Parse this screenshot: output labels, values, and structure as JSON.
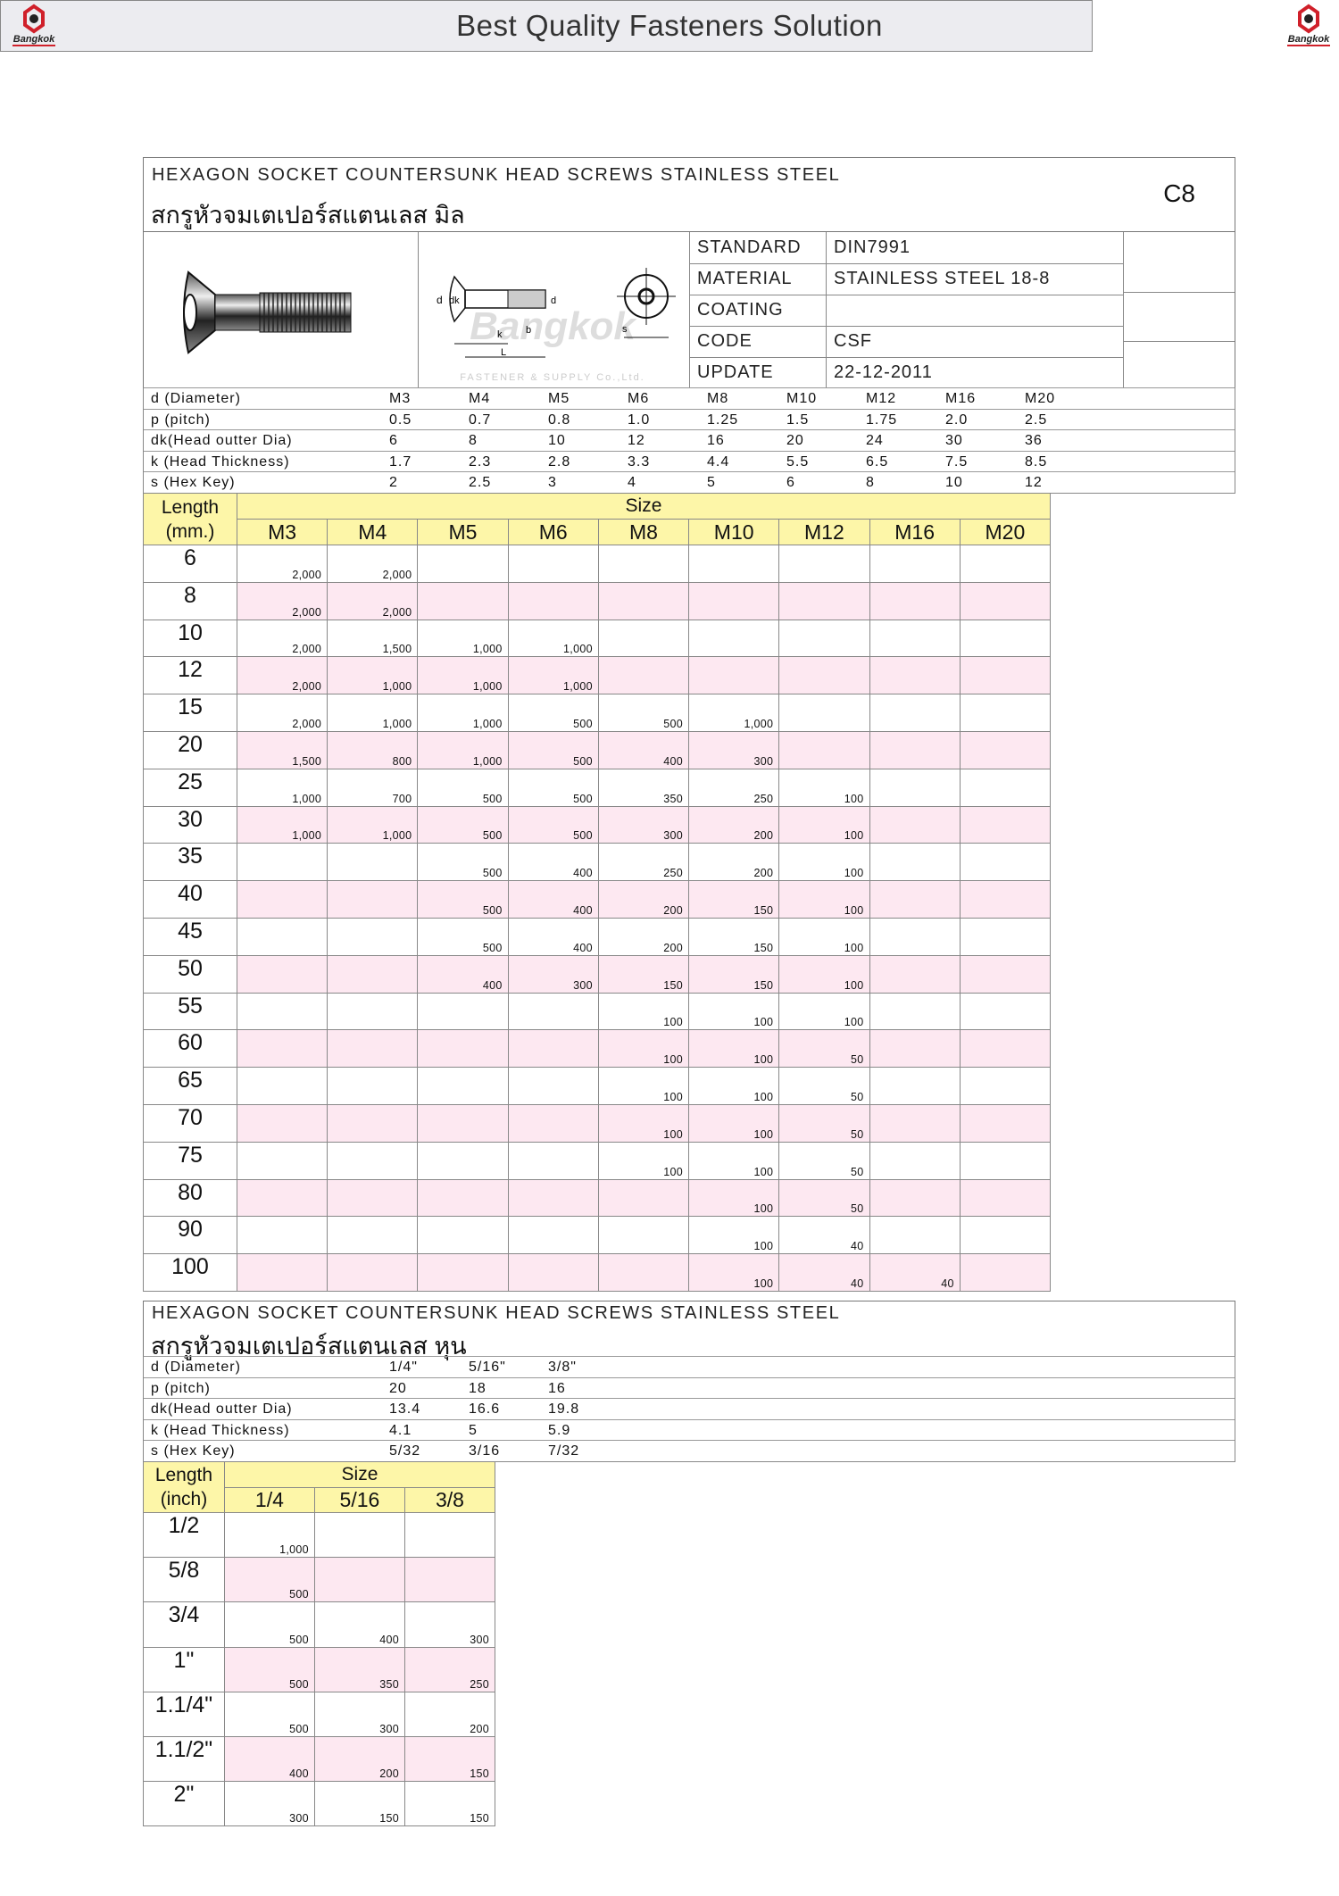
{
  "header": {
    "title": "Best Quality Fasteners  Solution",
    "logo_text": "Bangkok",
    "logo_subtext": "FASTENER & SUPPLY Co.,Ltd."
  },
  "metric": {
    "title_en": "HEXAGON  SOCKET  COUNTERSUNK  HEAD  SCREWS  STAINLESS  STEEL",
    "title_th": "สกรูหัวจมเตเปอร์สแตนเลส มิล",
    "page_code": "C8",
    "diagram_watermark": "Bangkok FASTENER & SUPPLY Co.,Ltd.",
    "diagram_labels": [
      "d",
      "dk",
      "k",
      "b",
      "L",
      "d",
      "s"
    ],
    "info": [
      {
        "label": "STANDARD",
        "value": "DIN7991"
      },
      {
        "label": "MATERIAL",
        "value": "STAINLESS  STEEL  18-8"
      },
      {
        "label": "COATING",
        "value": ""
      },
      {
        "label": "CODE",
        "value": "CSF"
      },
      {
        "label": "UPDATE",
        "value": "22-12-2011"
      }
    ],
    "specs": [
      {
        "label": "d (Diameter)",
        "values": [
          "M3",
          "M4",
          "M5",
          "M6",
          "M8",
          "M10",
          "M12",
          "M16",
          "M20"
        ]
      },
      {
        "label": "p (pitch)",
        "values": [
          "0.5",
          "0.7",
          "0.8",
          "1.0",
          "1.25",
          "1.5",
          "1.75",
          "2.0",
          "2.5"
        ]
      },
      {
        "label": "dk(Head outter Dia)",
        "values": [
          "6",
          "8",
          "10",
          "12",
          "16",
          "20",
          "24",
          "30",
          "36"
        ]
      },
      {
        "label": "k (Head Thickness)",
        "values": [
          "1.7",
          "2.3",
          "2.8",
          "3.3",
          "4.4",
          "5.5",
          "6.5",
          "7.5",
          "8.5"
        ]
      },
      {
        "label": "s (Hex Key)",
        "values": [
          "2",
          "2.5",
          "3",
          "4",
          "5",
          "6",
          "8",
          "10",
          "12"
        ]
      }
    ],
    "table": {
      "length_label_1": "Length",
      "length_label_2": "(mm.)",
      "size_label": "Size",
      "sizes": [
        "M3",
        "M4",
        "M5",
        "M6",
        "M8",
        "M10",
        "M12",
        "M16",
        "M20"
      ],
      "rows": [
        {
          "length": "6",
          "qty": [
            "2,000",
            "2,000",
            "",
            "",
            "",
            "",
            "",
            "",
            ""
          ]
        },
        {
          "length": "8",
          "qty": [
            "2,000",
            "2,000",
            "",
            "",
            "",
            "",
            "",
            "",
            ""
          ]
        },
        {
          "length": "10",
          "qty": [
            "2,000",
            "1,500",
            "1,000",
            "1,000",
            "",
            "",
            "",
            "",
            ""
          ]
        },
        {
          "length": "12",
          "qty": [
            "2,000",
            "1,000",
            "1,000",
            "1,000",
            "",
            "",
            "",
            "",
            ""
          ]
        },
        {
          "length": "15",
          "qty": [
            "2,000",
            "1,000",
            "1,000",
            "500",
            "500",
            "1,000",
            "",
            "",
            ""
          ]
        },
        {
          "length": "20",
          "qty": [
            "1,500",
            "800",
            "1,000",
            "500",
            "400",
            "300",
            "",
            "",
            ""
          ]
        },
        {
          "length": "25",
          "qty": [
            "1,000",
            "700",
            "500",
            "500",
            "350",
            "250",
            "100",
            "",
            ""
          ]
        },
        {
          "length": "30",
          "qty": [
            "1,000",
            "1,000",
            "500",
            "500",
            "300",
            "200",
            "100",
            "",
            ""
          ]
        },
        {
          "length": "35",
          "qty": [
            "",
            "",
            "500",
            "400",
            "250",
            "200",
            "100",
            "",
            ""
          ]
        },
        {
          "length": "40",
          "qty": [
            "",
            "",
            "500",
            "400",
            "200",
            "150",
            "100",
            "",
            ""
          ]
        },
        {
          "length": "45",
          "qty": [
            "",
            "",
            "500",
            "400",
            "200",
            "150",
            "100",
            "",
            ""
          ]
        },
        {
          "length": "50",
          "qty": [
            "",
            "",
            "400",
            "300",
            "150",
            "150",
            "100",
            "",
            ""
          ]
        },
        {
          "length": "55",
          "qty": [
            "",
            "",
            "",
            "",
            "100",
            "100",
            "100",
            "",
            ""
          ]
        },
        {
          "length": "60",
          "qty": [
            "",
            "",
            "",
            "",
            "100",
            "100",
            "50",
            "",
            ""
          ]
        },
        {
          "length": "65",
          "qty": [
            "",
            "",
            "",
            "",
            "100",
            "100",
            "50",
            "",
            ""
          ]
        },
        {
          "length": "70",
          "qty": [
            "",
            "",
            "",
            "",
            "100",
            "100",
            "50",
            "",
            ""
          ]
        },
        {
          "length": "75",
          "qty": [
            "",
            "",
            "",
            "",
            "100",
            "100",
            "50",
            "",
            ""
          ]
        },
        {
          "length": "80",
          "qty": [
            "",
            "",
            "",
            "",
            "",
            "100",
            "50",
            "",
            ""
          ]
        },
        {
          "length": "90",
          "qty": [
            "",
            "",
            "",
            "",
            "",
            "100",
            "40",
            "",
            ""
          ]
        },
        {
          "length": "100",
          "qty": [
            "",
            "",
            "",
            "",
            "",
            "100",
            "40",
            "40",
            ""
          ]
        }
      ]
    }
  },
  "inch": {
    "title_en": "HEXAGON  SOCKET  COUNTERSUNK  HEAD  SCREWS  STAINLESS  STEEL",
    "title_th": "สกรูหัวจมเตเปอร์สแตนเลส หุน",
    "specs": [
      {
        "label": "d (Diameter)",
        "values": [
          "1/4\"",
          "5/16\"",
          "3/8\""
        ]
      },
      {
        "label": "p (pitch)",
        "values": [
          "20",
          "18",
          "16"
        ]
      },
      {
        "label": "dk(Head outter Dia)",
        "values": [
          "13.4",
          "16.6",
          "19.8"
        ]
      },
      {
        "label": "k (Head Thickness)",
        "values": [
          "4.1",
          "5",
          "5.9"
        ]
      },
      {
        "label": "s (Hex Key)",
        "values": [
          "5/32",
          "3/16",
          "7/32"
        ]
      }
    ],
    "table": {
      "length_label_1": "Length",
      "length_label_2": "(inch)",
      "size_label": "Size",
      "sizes": [
        "1/4",
        "5/16",
        "3/8"
      ],
      "rows": [
        {
          "length": "1/2",
          "qty": [
            "1,000",
            "",
            ""
          ]
        },
        {
          "length": "5/8",
          "qty": [
            "500",
            "",
            ""
          ]
        },
        {
          "length": "3/4",
          "qty": [
            "500",
            "400",
            "300"
          ]
        },
        {
          "length": "1\"",
          "qty": [
            "500",
            "350",
            "250"
          ]
        },
        {
          "length": "1.1/4\"",
          "qty": [
            "500",
            "300",
            "200"
          ]
        },
        {
          "length": "1.1/2\"",
          "qty": [
            "400",
            "200",
            "150"
          ]
        },
        {
          "length": "2\"",
          "qty": [
            "300",
            "150",
            "150"
          ]
        }
      ]
    }
  },
  "colors": {
    "header_bg": "#ececf0",
    "table_header": "#fdf6a8",
    "alt_row": "#fde8f1",
    "logo_red": "#d0202a"
  }
}
